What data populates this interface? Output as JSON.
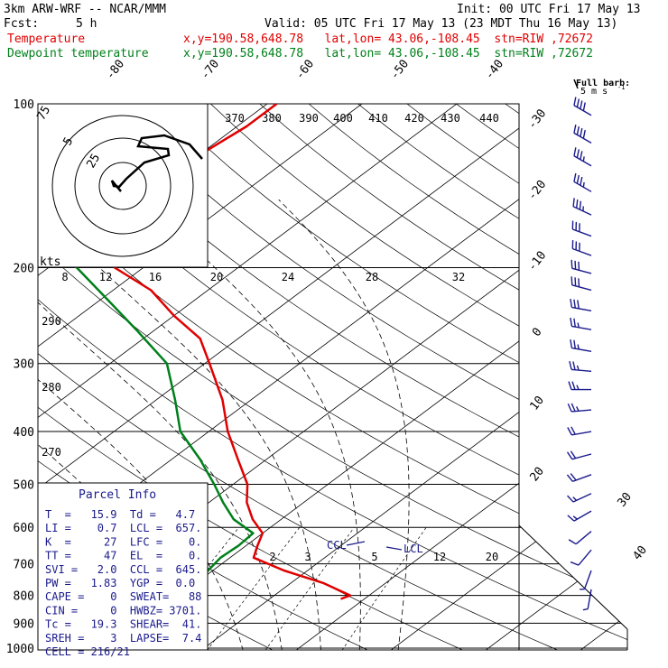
{
  "header": {
    "model": "3km ARW-WRF -- NCAR/MMM",
    "init": "Init: 00 UTC Fri 17 May 13",
    "fcst_label": "Fcst:",
    "fcst_value": "5 h",
    "valid": "Valid: 05 UTC Fri 17 May 13 (23 MDT Thu 16 May 13)",
    "temp_label": "Temperature",
    "temp_loc": "x,y=190.58,648.78   lat,lon= 43.06,-108.45  stn=RIW ,72672",
    "dew_label": "Dewpoint temperature",
    "dew_loc": "x,y=190.58,648.78   lat,lon= 43.06,-108.45  stn=RIW ,72672",
    "barb_key_1": "Full barb:",
    "barb_key_2": "5 m s",
    "barb_key_3": "-1"
  },
  "colors": {
    "temperature": "#e00000",
    "dewpoint": "#00801a",
    "parcel_text": "#1a1a8c",
    "grid": "#000000",
    "dry_adiabat": "#000000",
    "moist_adiabat": "#000000"
  },
  "chart_data": {
    "type": "line",
    "diagram": "skew-T log-P",
    "y_axis": {
      "scale": "log",
      "ticks": [
        100,
        200,
        300,
        400,
        500,
        600,
        700,
        800,
        900,
        1000
      ],
      "units": "hPa"
    },
    "x_axis": {
      "ticks": [
        -80,
        -70,
        -60,
        -50,
        -40,
        -30,
        -20,
        -10,
        0,
        10,
        20,
        30,
        40
      ],
      "units": "C"
    },
    "theta_labels": [
      370,
      380,
      390,
      400,
      410,
      420,
      430,
      440
    ],
    "theta_labels_left": [
      290,
      280,
      270
    ],
    "hodograph_axis": [
      8,
      12,
      16,
      20,
      24,
      28,
      32
    ],
    "hodograph_ring_labels": [
      "5",
      "25",
      "75"
    ],
    "hodograph_unit": "kts",
    "mixing_ratio_labels": [
      "2",
      "3",
      "5",
      "8",
      "12",
      "20"
    ],
    "level_labels": [
      "CCL",
      "LCL"
    ],
    "series": [
      {
        "name": "Temperature",
        "color": "#e00000",
        "points": [
          [
            812,
            17.5
          ],
          [
            800,
            18.0
          ],
          [
            760,
            13.5
          ],
          [
            720,
            7.5
          ],
          [
            682,
            2.5
          ],
          [
            648,
            1.2
          ],
          [
            615,
            0.0
          ],
          [
            580,
            -3.0
          ],
          [
            540,
            -6.0
          ],
          [
            500,
            -8.5
          ],
          [
            450,
            -13.0
          ],
          [
            400,
            -18.0
          ],
          [
            350,
            -23.0
          ],
          [
            300,
            -29.5
          ],
          [
            270,
            -34.0
          ],
          [
            245,
            -40.0
          ],
          [
            220,
            -46.0
          ],
          [
            200,
            -53.0
          ],
          [
            185,
            -58.0
          ],
          [
            160,
            -60.0
          ],
          [
            140,
            -62.0
          ],
          [
            125,
            -60.0
          ],
          [
            110,
            -59.0
          ],
          [
            100,
            -59.0
          ]
        ]
      },
      {
        "name": "Dewpoint temperature",
        "color": "#00801a",
        "points": [
          [
            818,
            0.8
          ],
          [
            800,
            -0.5
          ],
          [
            760,
            -0.3
          ],
          [
            720,
            -0.5
          ],
          [
            682,
            -1.0
          ],
          [
            648,
            -0.8
          ],
          [
            615,
            -1.0
          ],
          [
            580,
            -5.0
          ],
          [
            540,
            -8.5
          ],
          [
            500,
            -12.0
          ],
          [
            450,
            -17.0
          ],
          [
            400,
            -23.0
          ],
          [
            350,
            -28.0
          ],
          [
            300,
            -34.0
          ],
          [
            260,
            -42.0
          ],
          [
            230,
            -49.0
          ],
          [
            200,
            -57.0
          ],
          [
            185,
            -63.0
          ],
          [
            160,
            -70.0
          ],
          [
            140,
            -74.0
          ],
          [
            125,
            -76.0
          ],
          [
            110,
            -78.0
          ],
          [
            100,
            -80.0
          ]
        ]
      }
    ]
  },
  "wind_barbs": [
    {
      "p": 105,
      "dir": 300,
      "kt": 40
    },
    {
      "p": 118,
      "dir": 300,
      "kt": 40
    },
    {
      "p": 130,
      "dir": 300,
      "kt": 35
    },
    {
      "p": 145,
      "dir": 300,
      "kt": 35
    },
    {
      "p": 160,
      "dir": 295,
      "kt": 35
    },
    {
      "p": 175,
      "dir": 290,
      "kt": 30
    },
    {
      "p": 190,
      "dir": 290,
      "kt": 30
    },
    {
      "p": 205,
      "dir": 285,
      "kt": 30
    },
    {
      "p": 220,
      "dir": 285,
      "kt": 30
    },
    {
      "p": 240,
      "dir": 280,
      "kt": 30
    },
    {
      "p": 260,
      "dir": 280,
      "kt": 25
    },
    {
      "p": 285,
      "dir": 280,
      "kt": 25
    },
    {
      "p": 310,
      "dir": 275,
      "kt": 25
    },
    {
      "p": 335,
      "dir": 270,
      "kt": 25
    },
    {
      "p": 365,
      "dir": 265,
      "kt": 25
    },
    {
      "p": 400,
      "dir": 260,
      "kt": 20
    },
    {
      "p": 440,
      "dir": 255,
      "kt": 20
    },
    {
      "p": 480,
      "dir": 250,
      "kt": 20
    },
    {
      "p": 520,
      "dir": 245,
      "kt": 15
    },
    {
      "p": 560,
      "dir": 240,
      "kt": 15
    },
    {
      "p": 610,
      "dir": 230,
      "kt": 10
    },
    {
      "p": 660,
      "dir": 220,
      "kt": 10
    },
    {
      "p": 720,
      "dir": 200,
      "kt": 5
    },
    {
      "p": 780,
      "dir": 190,
      "kt": 5
    }
  ],
  "parcel_info": {
    "title": "Parcel Info",
    "rows": [
      "T  =   15.9  Td =   4.7",
      "LI =    0.7  LCL =  657.",
      "K  =     27  LFC =    0.",
      "TT =     47  EL  =    0.",
      "SVI =   2.0  CCL =  645.",
      "PW =   1.83  YGP =  0.0",
      "CAPE =    0  SWEAT=   88",
      "CIN =     0  HWBZ= 3701.",
      "Tc =   19.3  SHEAR=  41.",
      "SREH =    3  LAPSE=  7.4",
      "CELL = 216/21"
    ]
  }
}
